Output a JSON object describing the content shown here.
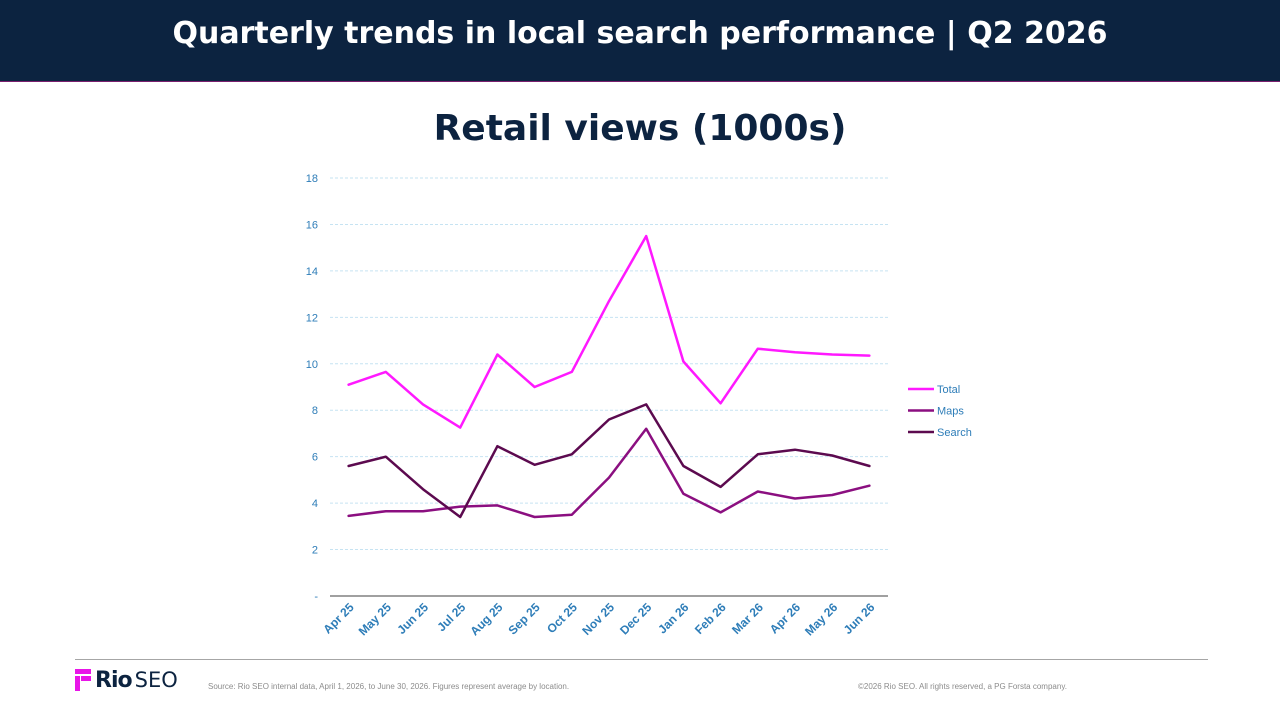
{
  "header": {
    "title": "Quarterly trends in local search performance  |  Q2 2026"
  },
  "colors": {
    "header_bg": "#0c2340",
    "total": "#ff19ff",
    "maps": "#8b0f80",
    "search": "#5c0a4f",
    "axis_text": "#2e7db8",
    "grid": "#c6e3f2",
    "brand_magenta": "#e815e8"
  },
  "chart_data": {
    "type": "line",
    "title": "Retail views (1000s)",
    "xlabel": "",
    "ylabel": "",
    "ylim": [
      0,
      18
    ],
    "yticks": [
      "-",
      "2",
      "4",
      "6",
      "8",
      "10",
      "12",
      "14",
      "16",
      "18"
    ],
    "grid": true,
    "legend_position": "right",
    "categories": [
      "Apr 25",
      "May 25",
      "Jun 25",
      "Jul 25",
      "Aug 25",
      "Sep 25",
      "Oct 25",
      "Nov 25",
      "Dec 25",
      "Jan 26",
      "Feb 26",
      "Mar 26",
      "Apr 26",
      "May 26",
      "Jun 26"
    ],
    "series": [
      {
        "name": "Total",
        "color": "#ff19ff",
        "values": [
          9.1,
          9.65,
          8.25,
          7.25,
          10.4,
          9.0,
          9.65,
          12.7,
          15.5,
          10.1,
          8.3,
          10.65,
          10.5,
          10.4,
          10.35
        ]
      },
      {
        "name": "Maps",
        "color": "#8b0f80",
        "values": [
          3.45,
          3.65,
          3.65,
          3.85,
          3.9,
          3.4,
          3.5,
          5.1,
          7.2,
          4.4,
          3.6,
          4.5,
          4.2,
          4.35,
          4.75
        ]
      },
      {
        "name": "Search",
        "color": "#5c0a4f",
        "values": [
          5.6,
          6.0,
          4.6,
          3.4,
          6.45,
          5.65,
          6.1,
          7.6,
          8.25,
          5.6,
          4.7,
          6.1,
          6.3,
          6.05,
          5.6
        ]
      }
    ]
  },
  "footer": {
    "logo_rio": "Rio",
    "logo_seo": "SEO",
    "source": "Source: Rio SEO internal data, April 1, 2026, to June 30, 2026. Figures represent average by location.",
    "copyright": "©2026 Rio SEO. All rights reserved, a PG Forsta company."
  }
}
